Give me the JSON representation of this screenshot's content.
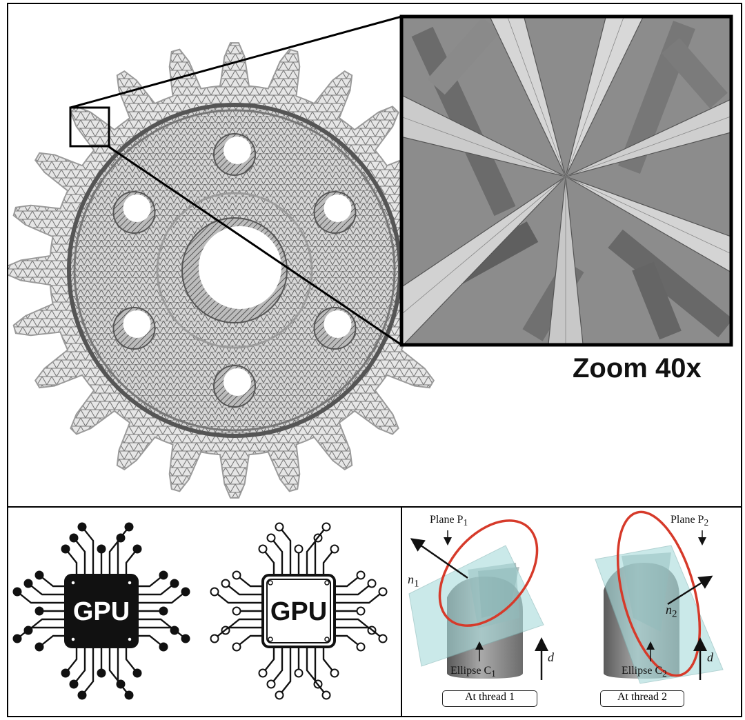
{
  "figure": {
    "zoom_label": "Zoom 40x"
  },
  "gpu_icons": {
    "filled_label": "GPU",
    "outline_label": "GPU"
  },
  "diagram": {
    "plane1": "Plane P",
    "plane1_sub": "1",
    "plane2": "Plane P",
    "plane2_sub": "2",
    "normal1": "n",
    "normal1_sub": "1",
    "normal2": "n",
    "normal2_sub": "2",
    "ellipse1": "Ellipse C",
    "ellipse1_sub": "1",
    "ellipse2": "Ellipse C",
    "ellipse2_sub": "2",
    "d1": "d",
    "d2": "d",
    "thread1": "At thread 1",
    "thread2": "At thread 2"
  },
  "colors": {
    "ellipse": "#d63a2a",
    "plane": "#a8dcdc",
    "cylinder": "#8a8a8a",
    "mesh": "#bdbdbd"
  }
}
